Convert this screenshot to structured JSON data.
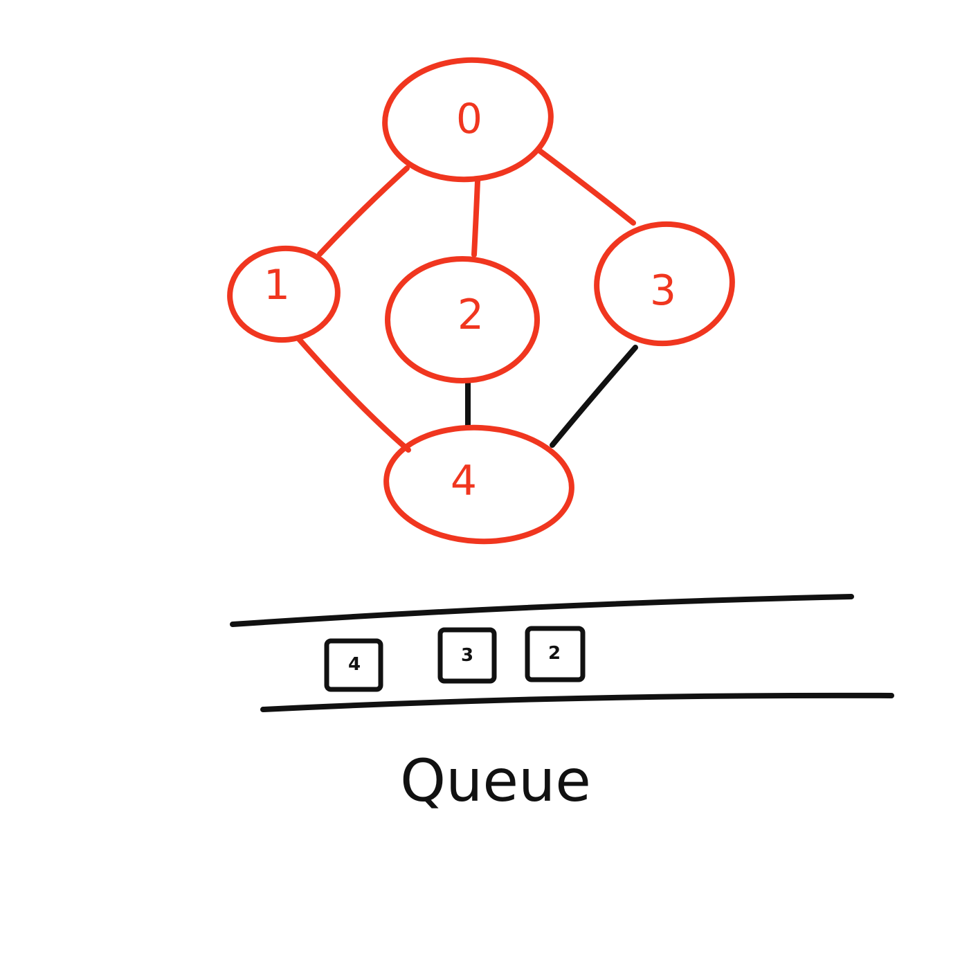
{
  "colors": {
    "visited": "#f0361f",
    "pending": "#111111",
    "background": "#ffffff"
  },
  "graph": {
    "nodes": [
      {
        "id": "0",
        "label": "0",
        "state": "visited"
      },
      {
        "id": "1",
        "label": "1",
        "state": "visited"
      },
      {
        "id": "2",
        "label": "2",
        "state": "visited"
      },
      {
        "id": "3",
        "label": "3",
        "state": "visited"
      },
      {
        "id": "4",
        "label": "4",
        "state": "visited"
      }
    ],
    "edges": [
      {
        "from": "0",
        "to": "1",
        "state": "visited"
      },
      {
        "from": "0",
        "to": "2",
        "state": "visited"
      },
      {
        "from": "0",
        "to": "3",
        "state": "visited"
      },
      {
        "from": "1",
        "to": "4",
        "state": "visited"
      },
      {
        "from": "2",
        "to": "4",
        "state": "pending"
      },
      {
        "from": "3",
        "to": "4",
        "state": "pending"
      }
    ]
  },
  "queue": {
    "items": [
      "4",
      "3",
      "2"
    ],
    "caption": "Queue"
  }
}
